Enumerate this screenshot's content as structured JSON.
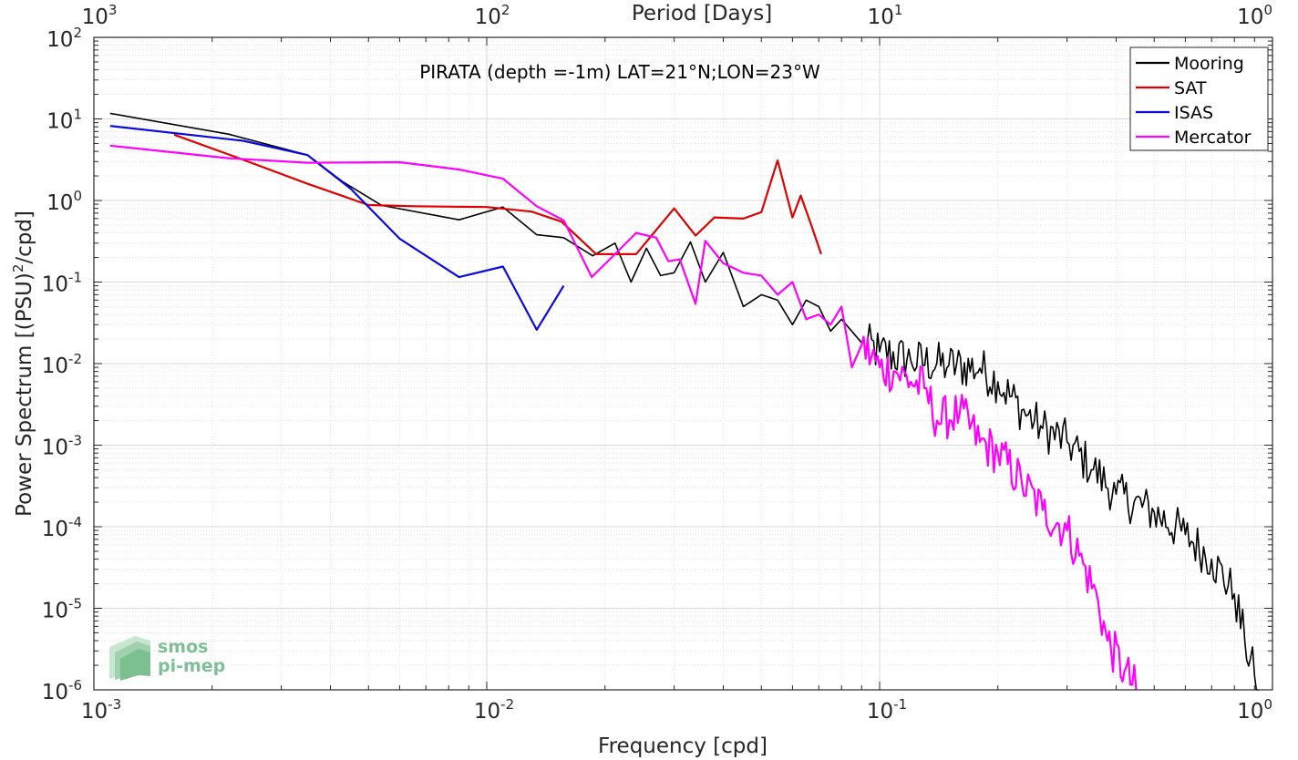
{
  "chart_data": {
    "type": "line",
    "title": "PIRATA (depth =-1m) LAT=21°N;LON=23°W",
    "xlabel": "Frequency [cpd]",
    "ylabel": "Power Spectrum [(PSU)²/cpd]",
    "ylabel_parts": {
      "prefix": "Power Spectrum [(PSU)",
      "sup": "2",
      "suffix": "/cpd]"
    },
    "top_xlabel": "Period [Days]",
    "xscale": "log",
    "yscale": "log",
    "xlim": [
      0.001,
      1
    ],
    "ylim": [
      1e-06,
      100
    ],
    "grid": true,
    "minor_grid": true,
    "legend_position": "top-right",
    "bottom_ticks": [
      {
        "value": 0.001,
        "base": "10",
        "exp": "-3"
      },
      {
        "value": 0.01,
        "base": "10",
        "exp": "-2"
      },
      {
        "value": 0.1,
        "base": "10",
        "exp": "-1"
      },
      {
        "value": 1,
        "base": "10",
        "exp": "0"
      }
    ],
    "top_ticks": [
      {
        "value": 0.001,
        "base": "10",
        "exp": "3"
      },
      {
        "value": 0.01,
        "base": "10",
        "exp": "2"
      },
      {
        "value": 0.1,
        "base": "10",
        "exp": "1"
      },
      {
        "value": 1,
        "base": "10",
        "exp": "0"
      }
    ],
    "y_ticks": [
      {
        "value": 100,
        "base": "10",
        "exp": "2"
      },
      {
        "value": 10,
        "base": "10",
        "exp": "1"
      },
      {
        "value": 1,
        "base": "10",
        "exp": "0"
      },
      {
        "value": 0.1,
        "base": "10",
        "exp": "-1"
      },
      {
        "value": 0.01,
        "base": "10",
        "exp": "-2"
      },
      {
        "value": 0.001,
        "base": "10",
        "exp": "-3"
      },
      {
        "value": 0.0001,
        "base": "10",
        "exp": "-4"
      },
      {
        "value": 1e-05,
        "base": "10",
        "exp": "-5"
      },
      {
        "value": 1e-06,
        "base": "10",
        "exp": "-6"
      }
    ],
    "series": [
      {
        "name": "Mooring",
        "color": "#000000",
        "width": 1.6,
        "noise": true,
        "points": [
          [
            0.0011,
            11.7
          ],
          [
            0.0022,
            6.5
          ],
          [
            0.0035,
            3.6
          ],
          [
            0.0043,
            1.7
          ],
          [
            0.0054,
            0.87
          ],
          [
            0.0085,
            0.58
          ],
          [
            0.011,
            0.83
          ],
          [
            0.0134,
            0.38
          ],
          [
            0.0157,
            0.35
          ],
          [
            0.0186,
            0.21
          ],
          [
            0.0212,
            0.3
          ],
          [
            0.0233,
            0.1
          ],
          [
            0.0255,
            0.26
          ],
          [
            0.0277,
            0.12
          ],
          [
            0.03,
            0.13
          ],
          [
            0.033,
            0.31
          ],
          [
            0.036,
            0.1
          ],
          [
            0.04,
            0.23
          ],
          [
            0.045,
            0.05
          ],
          [
            0.05,
            0.07
          ],
          [
            0.055,
            0.06
          ],
          [
            0.06,
            0.03
          ],
          [
            0.065,
            0.06
          ],
          [
            0.07,
            0.05
          ],
          [
            0.075,
            0.025
          ],
          [
            0.08,
            0.035
          ],
          [
            0.09,
            0.018
          ],
          [
            0.1,
            0.014
          ],
          [
            0.12,
            0.011
          ],
          [
            0.15,
            0.0095
          ],
          [
            0.18,
            0.0088
          ],
          [
            0.2,
            0.006
          ],
          [
            0.23,
            0.0027
          ],
          [
            0.26,
            0.0016
          ],
          [
            0.3,
            0.0011
          ],
          [
            0.35,
            0.0005
          ],
          [
            0.4,
            0.00025
          ],
          [
            0.5,
            0.00015
          ],
          [
            0.6,
            8e-05
          ],
          [
            0.7,
            4e-05
          ],
          [
            0.8,
            1.5e-05
          ],
          [
            0.85,
            4e-06
          ],
          [
            0.9,
            1.5e-06
          ],
          [
            0.92,
            1e-06
          ]
        ]
      },
      {
        "name": "SAT",
        "color": "#e00000",
        "width": 2.2,
        "noise": false,
        "points": [
          [
            0.0016,
            6.4
          ],
          [
            0.0023,
            3.4
          ],
          [
            0.0035,
            1.6
          ],
          [
            0.005,
            0.88
          ],
          [
            0.0065,
            0.85
          ],
          [
            0.01,
            0.83
          ],
          [
            0.013,
            0.73
          ],
          [
            0.0155,
            0.55
          ],
          [
            0.019,
            0.22
          ],
          [
            0.024,
            0.22
          ],
          [
            0.03,
            0.8
          ],
          [
            0.034,
            0.37
          ],
          [
            0.038,
            0.62
          ],
          [
            0.045,
            0.6
          ],
          [
            0.05,
            0.72
          ],
          [
            0.055,
            3.1
          ],
          [
            0.06,
            0.62
          ],
          [
            0.063,
            1.15
          ],
          [
            0.067,
            0.5
          ],
          [
            0.071,
            0.22
          ]
        ]
      },
      {
        "name": "ISAS",
        "color": "#0a0ae0",
        "width": 2.2,
        "noise": false,
        "points": [
          [
            0.0011,
            8.2
          ],
          [
            0.0024,
            5.4
          ],
          [
            0.0035,
            3.6
          ],
          [
            0.0045,
            1.4
          ],
          [
            0.006,
            0.34
          ],
          [
            0.0085,
            0.115
          ],
          [
            0.011,
            0.155
          ],
          [
            0.0134,
            0.026
          ],
          [
            0.0157,
            0.09
          ]
        ]
      },
      {
        "name": "Mercator",
        "color": "#ff00ff",
        "width": 2.2,
        "noise": true,
        "points": [
          [
            0.0011,
            4.7
          ],
          [
            0.0022,
            3.3
          ],
          [
            0.0035,
            2.9
          ],
          [
            0.006,
            2.95
          ],
          [
            0.0085,
            2.4
          ],
          [
            0.011,
            1.85
          ],
          [
            0.0134,
            0.85
          ],
          [
            0.0157,
            0.57
          ],
          [
            0.0185,
            0.115
          ],
          [
            0.0212,
            0.22
          ],
          [
            0.024,
            0.4
          ],
          [
            0.027,
            0.35
          ],
          [
            0.029,
            0.18
          ],
          [
            0.031,
            0.19
          ],
          [
            0.034,
            0.054
          ],
          [
            0.036,
            0.32
          ],
          [
            0.04,
            0.17
          ],
          [
            0.045,
            0.13
          ],
          [
            0.05,
            0.12
          ],
          [
            0.055,
            0.07
          ],
          [
            0.06,
            0.1
          ],
          [
            0.065,
            0.035
          ],
          [
            0.07,
            0.04
          ],
          [
            0.075,
            0.03
          ],
          [
            0.08,
            0.05
          ],
          [
            0.085,
            0.009
          ],
          [
            0.09,
            0.017
          ],
          [
            0.1,
            0.009
          ],
          [
            0.11,
            0.008
          ],
          [
            0.12,
            0.006
          ],
          [
            0.13,
            0.005
          ],
          [
            0.14,
            0.002
          ],
          [
            0.16,
            0.0025
          ],
          [
            0.18,
            0.0011
          ],
          [
            0.2,
            0.0008
          ],
          [
            0.23,
            0.00035
          ],
          [
            0.26,
            0.00016
          ],
          [
            0.3,
            9e-05
          ],
          [
            0.33,
            3.5e-05
          ],
          [
            0.36,
            1.2e-05
          ],
          [
            0.38,
            4e-06
          ],
          [
            0.42,
            1.7e-06
          ],
          [
            0.45,
            1e-06
          ]
        ]
      }
    ]
  },
  "logo": {
    "line1": "smos",
    "line2": "pi-mep"
  }
}
